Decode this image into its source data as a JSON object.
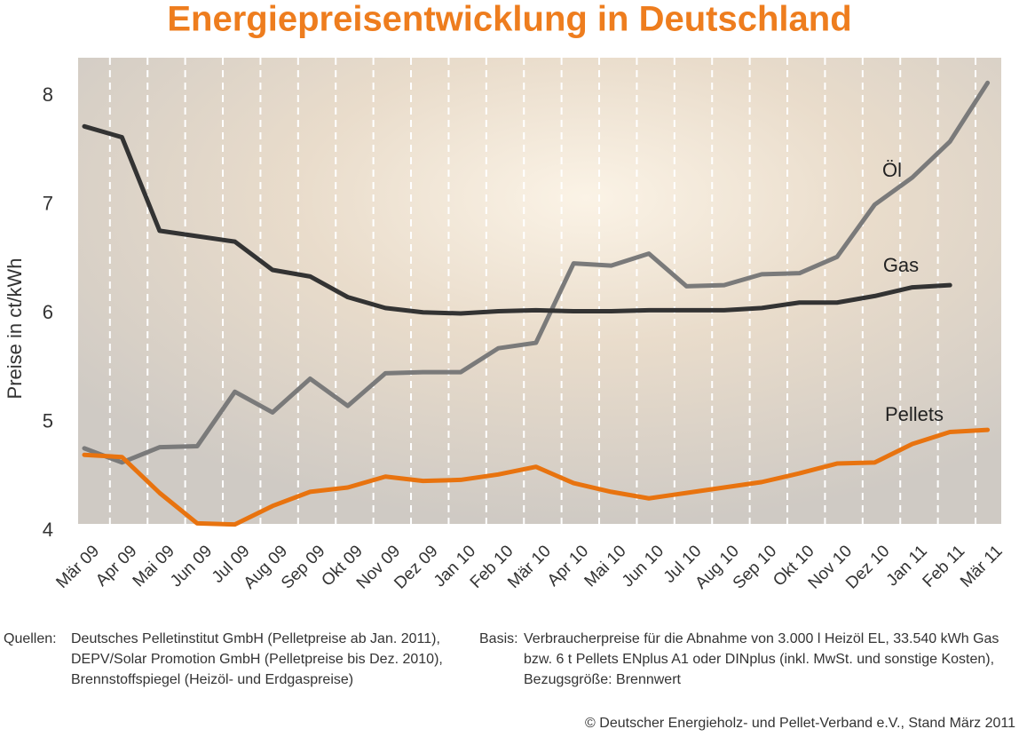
{
  "chart_data": {
    "type": "line",
    "title": "Energiepreisentwicklung in Deutschland",
    "y_label": "Preise in ct/kWh",
    "categories": [
      "Mär 09",
      "Apr 09",
      "Mai 09",
      "Jun 09",
      "Jul 09",
      "Aug 09",
      "Sep 09",
      "Okt 09",
      "Nov 09",
      "Dez 09",
      "Jan 10",
      "Feb 10",
      "Mär 10",
      "Apr 10",
      "Mai 10",
      "Jun 10",
      "Jul 10",
      "Aug 10",
      "Sep 10",
      "Okt 10",
      "Nov 10",
      "Dez 10",
      "Jan 11",
      "Feb 11",
      "Mär 11"
    ],
    "series": [
      {
        "name": "Öl",
        "color": "#7a7a7a",
        "values": [
          4.76,
          4.63,
          4.77,
          4.78,
          5.28,
          5.09,
          5.4,
          5.15,
          5.45,
          5.46,
          5.46,
          5.68,
          5.73,
          6.46,
          6.44,
          6.55,
          6.25,
          6.26,
          6.36,
          6.37,
          6.52,
          7.0,
          7.25,
          7.58,
          8.12
        ]
      },
      {
        "name": "Gas",
        "color": "#333333",
        "values": [
          7.72,
          7.62,
          6.76,
          6.71,
          6.66,
          6.4,
          6.34,
          6.15,
          6.05,
          6.01,
          6.0,
          6.02,
          6.03,
          6.02,
          6.02,
          6.03,
          6.03,
          6.03,
          6.05,
          6.1,
          6.1,
          6.16,
          6.24,
          6.26,
          null
        ]
      },
      {
        "name": "Pellets",
        "color": "#e8730f",
        "values": [
          4.7,
          4.68,
          4.35,
          4.07,
          4.06,
          4.23,
          4.36,
          4.4,
          4.5,
          4.46,
          4.47,
          4.52,
          4.59,
          4.44,
          4.36,
          4.3,
          4.35,
          4.4,
          4.45,
          4.53,
          4.62,
          4.63,
          4.8,
          4.91,
          4.93
        ]
      }
    ],
    "ylim": [
      4,
      8.4
    ],
    "yticks": [
      4,
      5,
      6,
      7,
      8
    ],
    "notes": {
      "sources_label": "Quellen:",
      "sources": [
        "Deutsches Pelletinstitut GmbH (Pelletpreise ab Jan. 2011),",
        "DEPV/Solar Promotion GmbH (Pelletpreise bis Dez. 2010),",
        "Brennstoffspiegel (Heizöl- und Erdgaspreise)"
      ],
      "basis_label": "Basis:",
      "basis": [
        "Verbraucherpreise für die Abnahme von 3.000 l Heizöl EL, 33.540 kWh Gas",
        "bzw. 6 t Pellets ENplus A1 oder DINplus (inkl. MwSt. und sonstige Kosten),",
        "Bezugsgröße: Brennwert"
      ],
      "copyright": "© Deutscher Energieholz- und Pellet-Verband e.V., Stand März 2011"
    }
  }
}
